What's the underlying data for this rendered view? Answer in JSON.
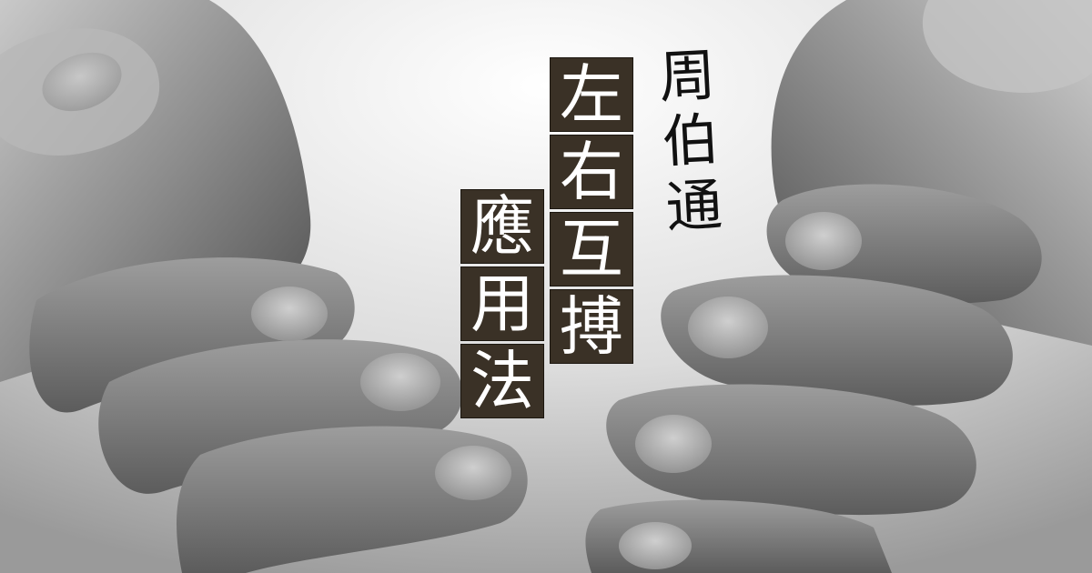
{
  "title": {
    "line1": [
      "左",
      "右",
      "互",
      "搏"
    ],
    "line2": [
      "應",
      "用",
      "法"
    ]
  },
  "signature": [
    "周",
    "伯",
    "通"
  ],
  "colors": {
    "tile_bg": "#3a3126",
    "tile_text": "#ffffff",
    "photo_tone": "grayscale"
  }
}
